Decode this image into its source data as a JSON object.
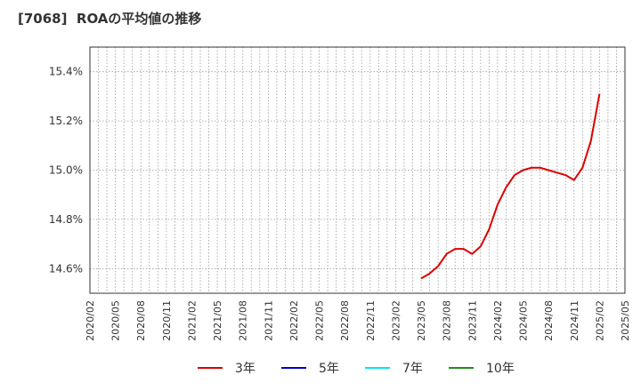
{
  "chart_data": {
    "type": "line",
    "title": "[7068]  ROAの平均値の推移",
    "xlabel": "",
    "ylabel": "",
    "x": [
      "2020/02",
      "2020/05",
      "2020/08",
      "2020/11",
      "2021/02",
      "2021/05",
      "2021/08",
      "2021/11",
      "2022/02",
      "2022/05",
      "2022/08",
      "2022/11",
      "2023/02",
      "2023/05",
      "2023/08",
      "2023/11",
      "2024/02",
      "2024/05",
      "2024/08",
      "2024/11",
      "2025/02",
      "2025/05"
    ],
    "ylim": [
      14.5,
      15.5
    ],
    "yticks": [
      14.6,
      14.8,
      15.0,
      15.2,
      15.4
    ],
    "ytick_labels": [
      "14.6%",
      "14.8%",
      "15.0%",
      "15.2%",
      "15.4%"
    ],
    "grid": true,
    "legend": "bottom",
    "series": [
      {
        "name": "3年",
        "color": "#dd0000",
        "points": [
          [
            "2023/05",
            14.56
          ],
          [
            "2023/06",
            14.58
          ],
          [
            "2023/07",
            14.61
          ],
          [
            "2023/08",
            14.66
          ],
          [
            "2023/09",
            14.68
          ],
          [
            "2023/10",
            14.68
          ],
          [
            "2023/11",
            14.66
          ],
          [
            "2023/12",
            14.69
          ],
          [
            "2024/01",
            14.76
          ],
          [
            "2024/02",
            14.86
          ],
          [
            "2024/03",
            14.93
          ],
          [
            "2024/04",
            14.98
          ],
          [
            "2024/05",
            15.0
          ],
          [
            "2024/06",
            15.01
          ],
          [
            "2024/07",
            15.01
          ],
          [
            "2024/08",
            15.0
          ],
          [
            "2024/09",
            14.99
          ],
          [
            "2024/10",
            14.98
          ],
          [
            "2024/11",
            14.96
          ],
          [
            "2024/12",
            15.01
          ],
          [
            "2025/01",
            15.12
          ],
          [
            "2025/02",
            15.31
          ]
        ]
      },
      {
        "name": "5年",
        "color": "#0000cc",
        "points": []
      },
      {
        "name": "7年",
        "color": "#00e5ee",
        "points": []
      },
      {
        "name": "10年",
        "color": "#228b22",
        "points": []
      }
    ]
  }
}
